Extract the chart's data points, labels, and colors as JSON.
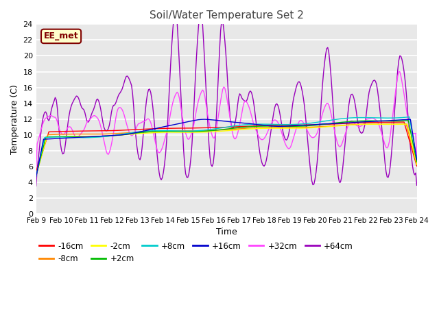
{
  "title": "Soil/Water Temperature Set 2",
  "xlabel": "Time",
  "ylabel": "Temperature (C)",
  "ylim": [
    0,
    24
  ],
  "yticks": [
    0,
    2,
    4,
    6,
    8,
    10,
    12,
    14,
    16,
    18,
    20,
    22,
    24
  ],
  "fig_bg": "#ffffff",
  "plot_bg": "#e8e8e8",
  "grid_color": "#ffffff",
  "annotation_text": "EE_met",
  "annotation_bg": "#ffffcc",
  "annotation_border": "#800000",
  "annotation_text_color": "#800000",
  "series_colors": {
    "-16cm": "#ff0000",
    "-8cm": "#ff8800",
    "-2cm": "#ffff00",
    "+2cm": "#00bb00",
    "+8cm": "#00cccc",
    "+16cm": "#0000cc",
    "+32cm": "#ff44ff",
    "+64cm": "#9900bb"
  },
  "x_labels": [
    "Feb 9",
    "Feb 10",
    "Feb 11",
    "Feb 12",
    "Feb 13",
    "Feb 14",
    "Feb 15",
    "Feb 16",
    "Feb 17",
    "Feb 18",
    "Feb 19",
    "Feb 20",
    "Feb 21",
    "Feb 22",
    "Feb 23",
    "Feb 24"
  ],
  "n_pts": 360
}
